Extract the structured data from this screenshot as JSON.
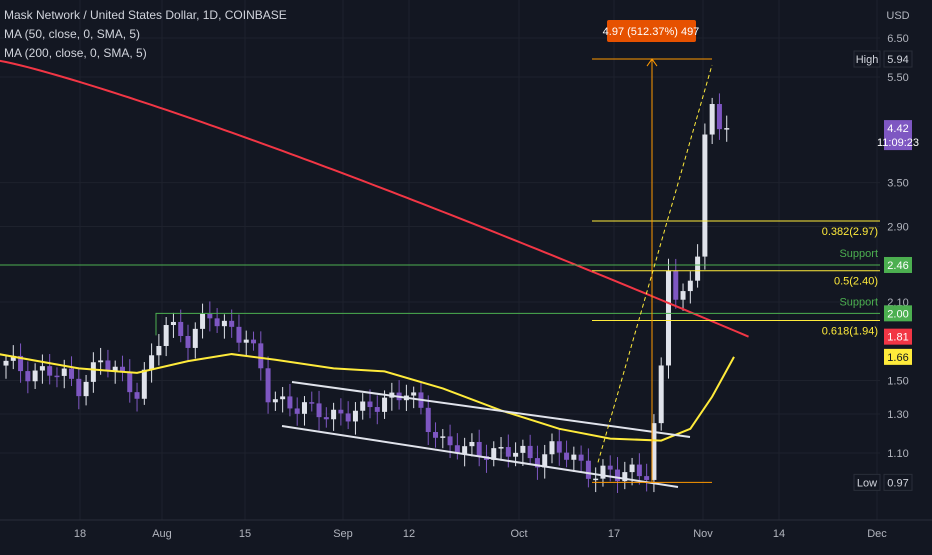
{
  "legend": {
    "title": "Mask Network / United States Dollar, 1D, COINBASE",
    "ma1": "MA (50, close, 0, SMA, 5)",
    "ma2": "MA (200, close, 0, SMA, 5)"
  },
  "chart_data": {
    "type": "candlestick",
    "currency": "USD",
    "price_axis_ticks": [
      "6.50",
      "5.50",
      "3.50",
      "2.90",
      "2.10",
      "1.50",
      "1.30",
      "1.10"
    ],
    "time_axis_ticks": [
      "18",
      "Aug",
      "15",
      "Sep",
      "12",
      "Oct",
      "17",
      "Nov",
      "14",
      "Dec"
    ],
    "price_tags": [
      {
        "label": "High",
        "value": "5.94",
        "color": "#131722",
        "text": "#d1d4dc",
        "border": "#2a2e39"
      },
      {
        "label": "",
        "value": "4.42",
        "sub": "11:09:23",
        "color": "#7e57c2",
        "text": "#ffffff"
      },
      {
        "label": "",
        "value": "2.46",
        "color": "#4caf50",
        "text": "#ffffff"
      },
      {
        "label": "",
        "value": "2.00",
        "color": "#4caf50",
        "text": "#ffffff"
      },
      {
        "label": "",
        "value": "1.81",
        "color": "#f23645",
        "text": "#ffffff"
      },
      {
        "label": "",
        "value": "1.66",
        "color": "#ffeb3b",
        "text": "#131722"
      },
      {
        "label": "Low",
        "value": "0.97",
        "color": "#131722",
        "text": "#d1d4dc",
        "border": "#2a2e39"
      }
    ],
    "fib_levels": [
      {
        "label": "0.382(2.97)",
        "value": 2.97
      },
      {
        "label": "0.5(2.40)",
        "value": 2.4
      },
      {
        "label": "0.618(1.94)",
        "value": 1.94
      }
    ],
    "support_levels": [
      {
        "label": "Support",
        "value": 2.46
      },
      {
        "label": "Support",
        "value": 2.0
      }
    ],
    "measure_label": "4.97 (512.37%) 497",
    "colors": {
      "background": "#131722",
      "up": "#e0e3eb",
      "down": "#7e57c2",
      "ma50": "#ffeb3b",
      "ma200": "#f23645",
      "fib": "#ffeb3b",
      "support": "#4caf50",
      "channel": "#e0e3eb",
      "measure": "#ff9800"
    }
  }
}
